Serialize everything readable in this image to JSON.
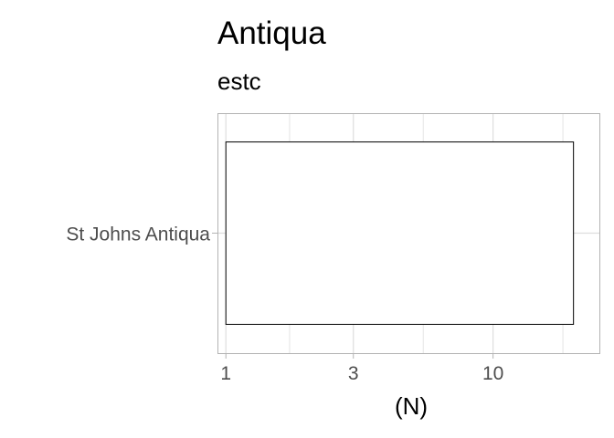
{
  "chart_data": {
    "type": "bar",
    "title": "Antiqua",
    "subtitle": "estc",
    "xlabel": "(N)",
    "ylabel": "",
    "x_scale": "log10",
    "x_ticks": [
      1,
      3,
      10
    ],
    "x_tick_labels": [
      "1",
      "3",
      "10"
    ],
    "xlim": [
      0.93,
      25
    ],
    "categories": [
      "St Johns Antiqua"
    ],
    "values": [
      20
    ],
    "grid": true,
    "bar_fill": "#ffffff",
    "bar_stroke": "#000000",
    "panel_border_color": "#b3b3b3",
    "grid_color": "#dedede"
  }
}
